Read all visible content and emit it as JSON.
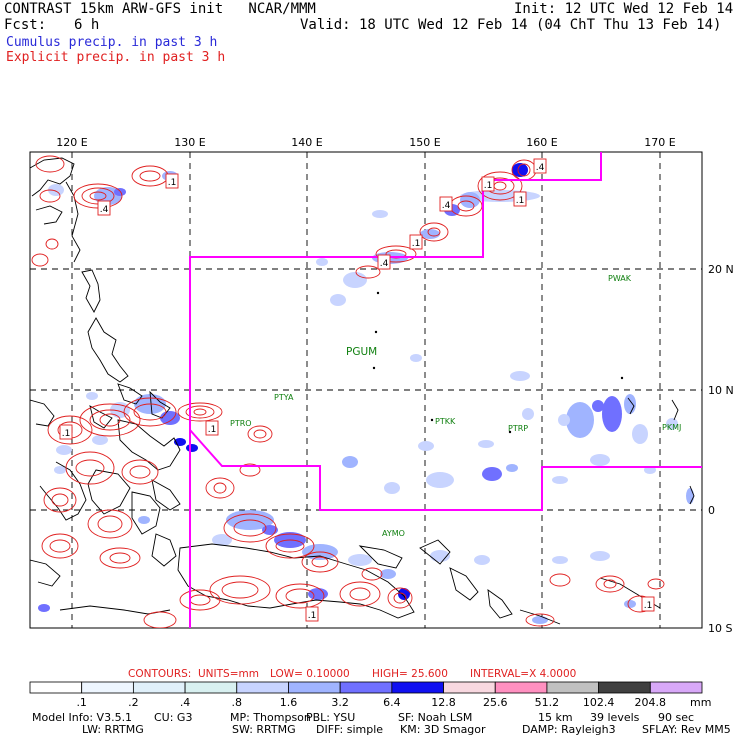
{
  "header": {
    "title": "CONTRAST 15km ARW-GFS init   NCAR/MMM",
    "fcst_label": "Fcst:",
    "fcst_value": "6 h",
    "init": "Init: 12 UTC Wed 12 Feb 14",
    "valid": "Valid: 18 UTC Wed 12 Feb 14 (04 ChT Thu 13 Feb 14)",
    "cumulus": "Cumulus precip. in past 3 h",
    "explicit": "Explicit precip. in past 3 h",
    "cumulus_color": "#2a2ad8",
    "explicit_color": "#e02020"
  },
  "map": {
    "lon_labels": [
      "120 E",
      "130 E",
      "140 E",
      "150 E",
      "160 E",
      "170 E"
    ],
    "lat_labels": [
      "20 N",
      "10 N",
      "0",
      "10 S"
    ],
    "stations": [
      {
        "id": "PWAK",
        "name": "PWAK"
      },
      {
        "id": "PGUM",
        "name": "PGUM"
      },
      {
        "id": "PTYA",
        "name": "PTYA"
      },
      {
        "id": "PTRO",
        "name": "PTRO"
      },
      {
        "id": "PTKK",
        "name": "PTKK"
      },
      {
        "id": "PTPN",
        "name": "PTRP"
      },
      {
        "id": "PKMJ",
        "name": "PKMJ"
      },
      {
        "id": "AYMO",
        "name": "AYMO"
      }
    ],
    "box_labels": [
      ".4",
      ".1",
      ".1",
      ".1",
      ".4",
      ".1",
      ".4",
      ".1",
      ".1",
      ".4",
      ".1",
      ".1"
    ],
    "boundary_color": "#ff00ff",
    "station_color": "#108010"
  },
  "contours": {
    "prefix": "CONTOURS:",
    "units": "UNITS=mm",
    "low": "LOW= 0.10000",
    "high": "HIGH= 25.600",
    "interval": "INTERVAL=X  4.0000"
  },
  "colorbar": {
    "unit": "mm",
    "ticks": [
      ".1",
      ".2",
      ".4",
      ".8",
      "1.6",
      "3.2",
      "6.4",
      "12.8",
      "25.6",
      "51.2",
      "102.4",
      "204.8"
    ],
    "colors": [
      "#ffffff",
      "#eef6ff",
      "#e0f0fa",
      "#d8f0f0",
      "#c8d4ff",
      "#a0b4ff",
      "#7070ff",
      "#1010f0",
      "#f8d8e0",
      "#ff90c0",
      "#c0c0c0",
      "#404040",
      "#d8a8f8"
    ]
  },
  "info": {
    "row1": [
      "Model Info: V3.5.1",
      "CU: G3",
      "MP: Thompson",
      "PBL: YSU",
      "SF: Noah LSM",
      "15 km",
      "39 levels",
      "90 sec"
    ],
    "row2": [
      "LW: RRTMG",
      "SW: RRTMG",
      "DIFF: simple",
      "KM: 3D Smagor",
      "DAMP: Rayleigh3",
      "SFLAY: Rev MM5"
    ]
  }
}
